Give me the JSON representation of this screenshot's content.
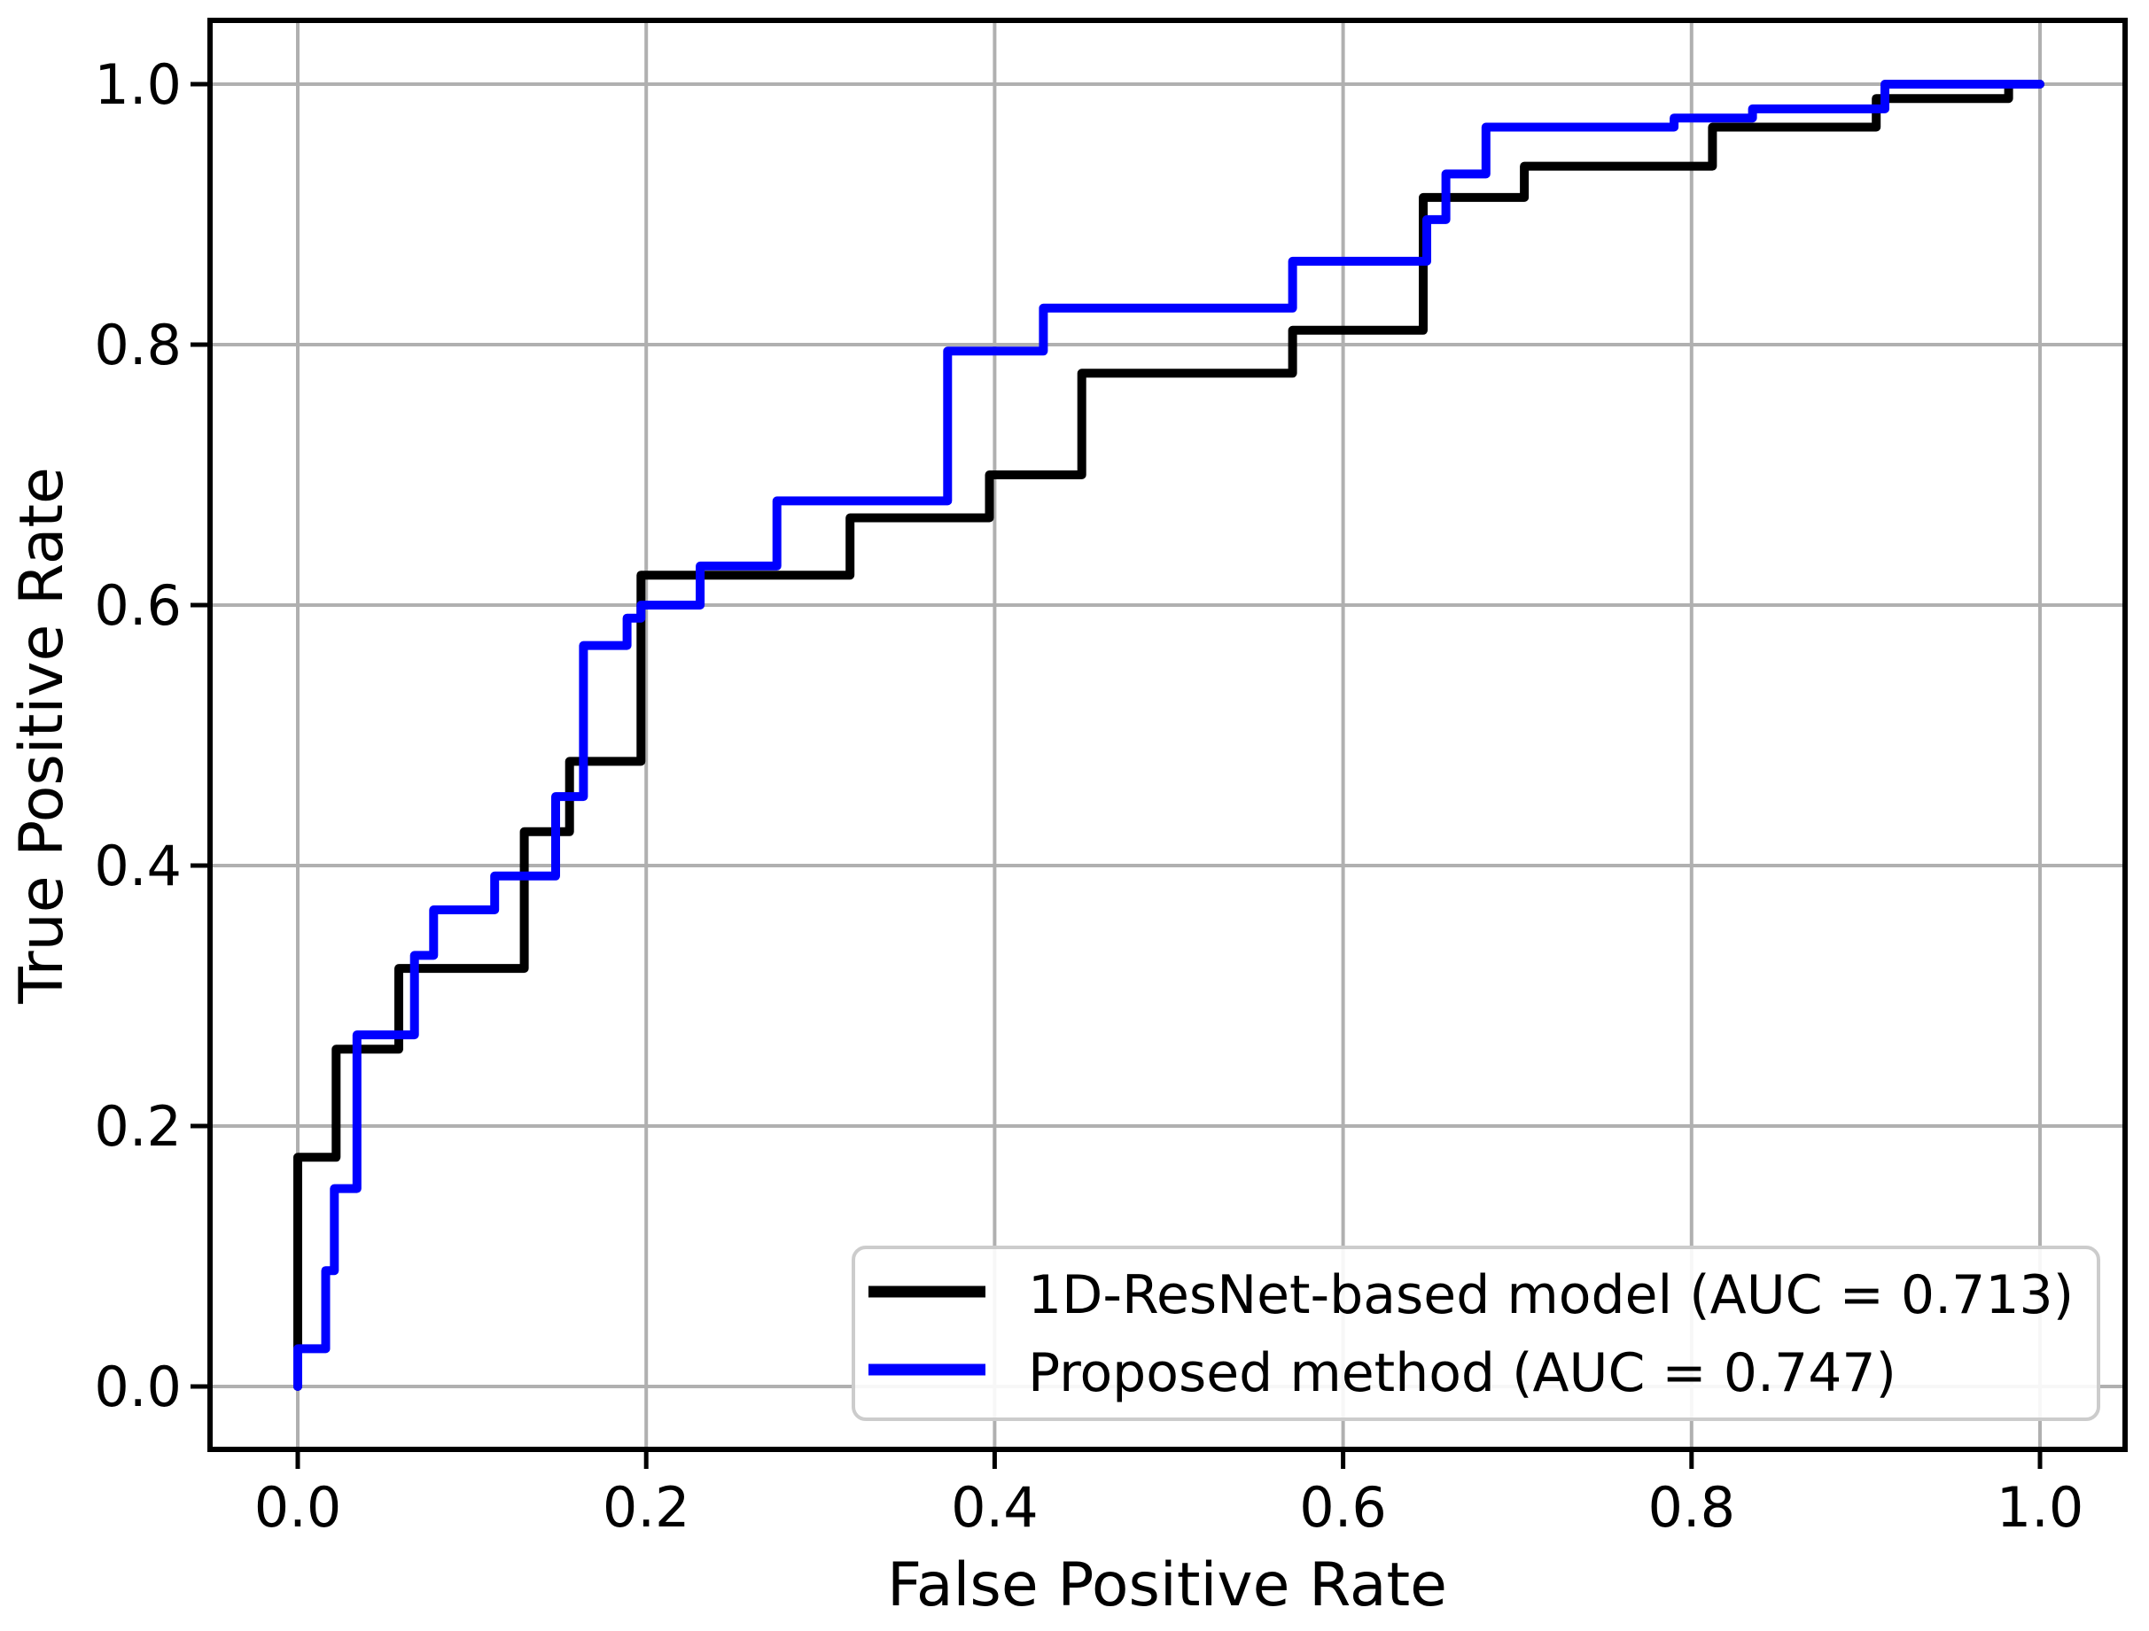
{
  "figure": {
    "background": "#ffffff",
    "xlabel": "False Positive Rate",
    "ylabel": "True Positive Rate",
    "x_tick_labels": [
      "0.0",
      "0.2",
      "0.4",
      "0.6",
      "0.8",
      "1.0"
    ],
    "y_tick_labels": [
      "0.0",
      "0.2",
      "0.4",
      "0.6",
      "0.8",
      "1.0"
    ],
    "grid_color": "#b0b0b0",
    "spine_color": "#000000",
    "legend": {
      "position": "lower right",
      "border_color": "#cccccc",
      "background": "#ffffff",
      "entries": [
        {
          "label": "1D-ResNet-based model (AUC = 0.713)",
          "color": "#000000"
        },
        {
          "label": "Proposed method (AUC = 0.747)",
          "color": "#0000ff"
        }
      ]
    }
  },
  "chart_data": {
    "type": "line",
    "subtype": "roc_step_curve",
    "title": "",
    "xlabel": "False Positive Rate",
    "ylabel": "True Positive Rate",
    "xlim": [
      -0.045,
      1.045
    ],
    "ylim": [
      -0.045,
      1.045
    ],
    "x_ticks": [
      0.0,
      0.2,
      0.4,
      0.6,
      0.8,
      1.0
    ],
    "y_ticks": [
      0.0,
      0.2,
      0.4,
      0.6,
      0.8,
      1.0
    ],
    "grid": true,
    "legend_position": "lower right",
    "series": [
      {
        "name": "1D-ResNet-based model (AUC = 0.713)",
        "auc": 0.713,
        "color": "#000000",
        "points": [
          [
            0.0,
            0.0
          ],
          [
            0.0,
            0.176
          ],
          [
            0.022,
            0.176
          ],
          [
            0.022,
            0.259
          ],
          [
            0.058,
            0.259
          ],
          [
            0.058,
            0.321
          ],
          [
            0.13,
            0.321
          ],
          [
            0.13,
            0.426
          ],
          [
            0.156,
            0.426
          ],
          [
            0.156,
            0.48
          ],
          [
            0.197,
            0.48
          ],
          [
            0.197,
            0.623
          ],
          [
            0.317,
            0.623
          ],
          [
            0.317,
            0.667
          ],
          [
            0.397,
            0.667
          ],
          [
            0.397,
            0.7
          ],
          [
            0.45,
            0.7
          ],
          [
            0.45,
            0.778
          ],
          [
            0.571,
            0.778
          ],
          [
            0.571,
            0.811
          ],
          [
            0.646,
            0.811
          ],
          [
            0.646,
            0.913
          ],
          [
            0.704,
            0.913
          ],
          [
            0.704,
            0.937
          ],
          [
            0.812,
            0.937
          ],
          [
            0.812,
            0.967
          ],
          [
            0.906,
            0.967
          ],
          [
            0.906,
            0.989
          ],
          [
            0.982,
            0.989
          ],
          [
            0.982,
            1.0
          ],
          [
            1.0,
            1.0
          ]
        ]
      },
      {
        "name": "Proposed method (AUC = 0.747)",
        "auc": 0.747,
        "color": "#0000ff",
        "points": [
          [
            0.0,
            0.0
          ],
          [
            0.0,
            0.029
          ],
          [
            0.016,
            0.029
          ],
          [
            0.016,
            0.089
          ],
          [
            0.021,
            0.089
          ],
          [
            0.021,
            0.152
          ],
          [
            0.034,
            0.152
          ],
          [
            0.034,
            0.27
          ],
          [
            0.067,
            0.27
          ],
          [
            0.067,
            0.331
          ],
          [
            0.078,
            0.331
          ],
          [
            0.078,
            0.366
          ],
          [
            0.113,
            0.366
          ],
          [
            0.113,
            0.392
          ],
          [
            0.148,
            0.392
          ],
          [
            0.148,
            0.453
          ],
          [
            0.164,
            0.453
          ],
          [
            0.164,
            0.569
          ],
          [
            0.189,
            0.569
          ],
          [
            0.189,
            0.59
          ],
          [
            0.197,
            0.59
          ],
          [
            0.197,
            0.6
          ],
          [
            0.231,
            0.6
          ],
          [
            0.231,
            0.63
          ],
          [
            0.275,
            0.63
          ],
          [
            0.275,
            0.68
          ],
          [
            0.373,
            0.68
          ],
          [
            0.373,
            0.795
          ],
          [
            0.428,
            0.795
          ],
          [
            0.428,
            0.828
          ],
          [
            0.571,
            0.828
          ],
          [
            0.571,
            0.864
          ],
          [
            0.648,
            0.864
          ],
          [
            0.648,
            0.896
          ],
          [
            0.659,
            0.896
          ],
          [
            0.659,
            0.931
          ],
          [
            0.682,
            0.931
          ],
          [
            0.682,
            0.967
          ],
          [
            0.79,
            0.967
          ],
          [
            0.79,
            0.974
          ],
          [
            0.835,
            0.974
          ],
          [
            0.835,
            0.981
          ],
          [
            0.911,
            0.981
          ],
          [
            0.911,
            1.0
          ],
          [
            1.0,
            1.0
          ]
        ]
      }
    ]
  }
}
